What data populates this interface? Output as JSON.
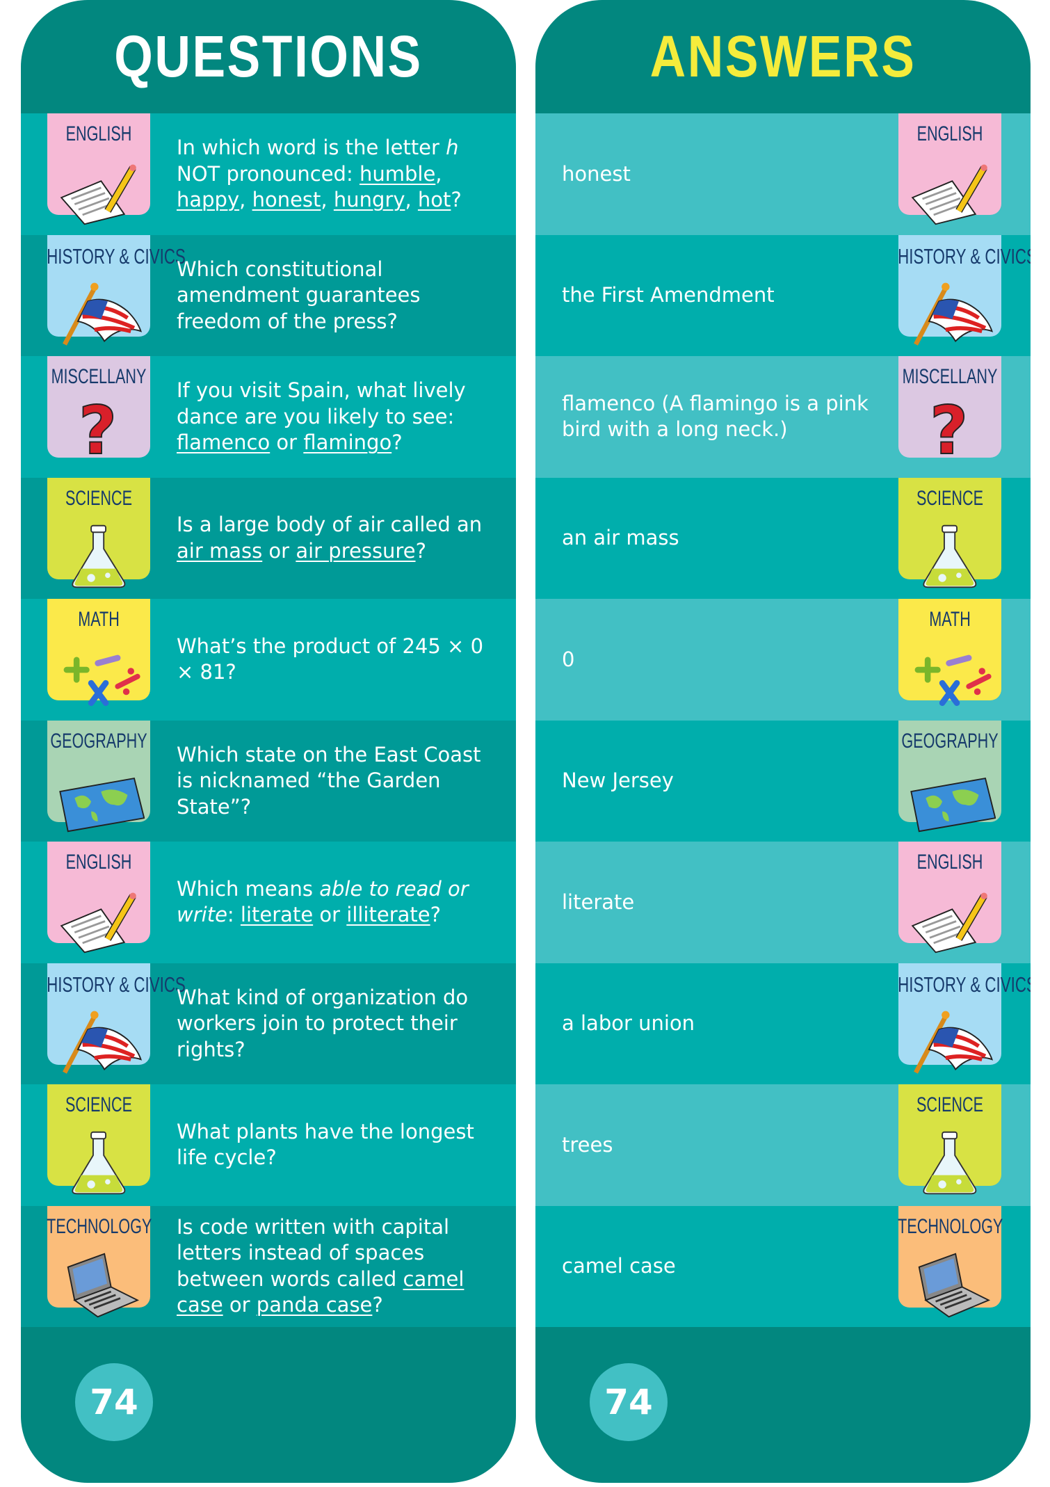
{
  "questions_header": "QUESTIONS",
  "answers_header": "ANSWERS",
  "page_number": "74",
  "category_colors": {
    "ENGLISH": "#f6bad6",
    "HISTORY_CIVICS": "#a6dcf4",
    "MISCELLANY": "#dcc8e2",
    "SCIENCE": "#d8e244",
    "MATH": "#fbe94a",
    "GEOGRAPHY": "#a9d4b4",
    "TECHNOLOGY": "#fbbd7a"
  },
  "rows": [
    {
      "category": "ENGLISH",
      "key": "ENGLISH",
      "icon": "paper-pencil-icon",
      "question": [
        {
          "t": "In which word is the letter "
        },
        {
          "t": "h",
          "i": true
        },
        {
          "t": " NOT pronounced: "
        },
        {
          "t": "humble",
          "u": true
        },
        {
          "t": ", "
        },
        {
          "t": "happy",
          "u": true
        },
        {
          "t": ", "
        },
        {
          "t": "honest",
          "u": true
        },
        {
          "t": ", "
        },
        {
          "t": "hungry",
          "u": true
        },
        {
          "t": ", "
        },
        {
          "t": "hot",
          "u": true
        },
        {
          "t": "?"
        }
      ],
      "answer": "honest"
    },
    {
      "category": "HISTORY & CIVICS",
      "key": "HISTORY_CIVICS",
      "icon": "us-flag-icon",
      "question": [
        {
          "t": "Which constitutional amendment guarantees freedom of the press?"
        }
      ],
      "answer": "the First Amendment"
    },
    {
      "category": "MISCELLANY",
      "key": "MISCELLANY",
      "icon": "question-mark-icon",
      "question": [
        {
          "t": "If you visit Spain, what lively dance are you likely to see: "
        },
        {
          "t": "flamenco",
          "u": true
        },
        {
          "t": " or "
        },
        {
          "t": "flamingo",
          "u": true
        },
        {
          "t": "?"
        }
      ],
      "answer": "flamenco (A flamingo is a pink bird with a long neck.)"
    },
    {
      "category": "SCIENCE",
      "key": "SCIENCE",
      "icon": "flask-icon",
      "question": [
        {
          "t": "Is a large body of air called an "
        },
        {
          "t": "air mass",
          "u": true
        },
        {
          "t": " or "
        },
        {
          "t": "air pressure",
          "u": true
        },
        {
          "t": "?"
        }
      ],
      "answer": "an air mass"
    },
    {
      "category": "MATH",
      "key": "MATH",
      "icon": "math-symbols-icon",
      "question": [
        {
          "t": "What’s the product of 245 × 0 × 81?"
        }
      ],
      "answer": "0"
    },
    {
      "category": "GEOGRAPHY",
      "key": "GEOGRAPHY",
      "icon": "world-map-icon",
      "question": [
        {
          "t": "Which state on the East Coast is nicknamed “the Garden State”?"
        }
      ],
      "answer": "New Jersey"
    },
    {
      "category": "ENGLISH",
      "key": "ENGLISH",
      "icon": "paper-pencil-icon",
      "question": [
        {
          "t": "Which means "
        },
        {
          "t": "able to read or write",
          "i": true
        },
        {
          "t": ": "
        },
        {
          "t": "literate",
          "u": true
        },
        {
          "t": " or "
        },
        {
          "t": "illiterate",
          "u": true
        },
        {
          "t": "?"
        }
      ],
      "answer": "literate"
    },
    {
      "category": "HISTORY & CIVICS",
      "key": "HISTORY_CIVICS",
      "icon": "us-flag-icon",
      "question": [
        {
          "t": "What kind of organization do workers join to protect their rights?"
        }
      ],
      "answer": "a labor union"
    },
    {
      "category": "SCIENCE",
      "key": "SCIENCE",
      "icon": "flask-icon",
      "question": [
        {
          "t": "What plants have the longest life cycle?"
        }
      ],
      "answer": "trees"
    },
    {
      "category": "TECHNOLOGY",
      "key": "TECHNOLOGY",
      "icon": "laptop-icon",
      "question": [
        {
          "t": "Is code written with capital letters instead of spaces between words called "
        },
        {
          "t": "camel case",
          "u": true
        },
        {
          "t": " or "
        },
        {
          "t": "panda case",
          "u": true
        },
        {
          "t": "?"
        }
      ],
      "answer": "camel case"
    }
  ]
}
